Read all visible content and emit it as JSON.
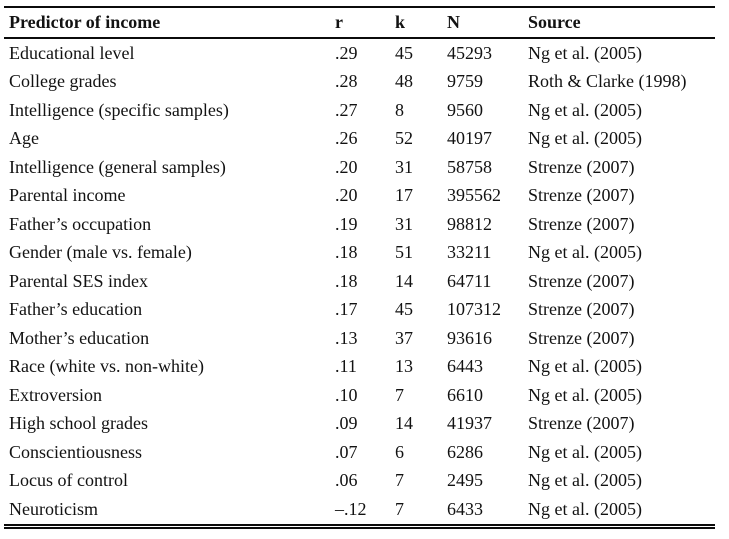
{
  "page": {
    "background": "#ffffff",
    "text_color": "#121212",
    "rule_color": "#0b0b0b"
  },
  "table": {
    "columns": [
      {
        "key": "predictor",
        "label": "Predictor of income"
      },
      {
        "key": "r",
        "label": "r"
      },
      {
        "key": "k",
        "label": "k"
      },
      {
        "key": "n",
        "label": "N"
      },
      {
        "key": "source",
        "label": "Source"
      }
    ],
    "rows": [
      {
        "predictor": "Educational level",
        "r": ".29",
        "k": "45",
        "n": "45293",
        "source": "Ng et al. (2005)"
      },
      {
        "predictor": "College grades",
        "r": ".28",
        "k": "48",
        "n": "9759",
        "source": "Roth & Clarke (1998)"
      },
      {
        "predictor": "Intelligence (specific samples)",
        "r": ".27",
        "k": "8",
        "n": "9560",
        "source": "Ng et al. (2005)"
      },
      {
        "predictor": "Age",
        "r": ".26",
        "k": "52",
        "n": "40197",
        "source": "Ng et al. (2005)"
      },
      {
        "predictor": "Intelligence (general samples)",
        "r": ".20",
        "k": "31",
        "n": "58758",
        "source": "Strenze (2007)"
      },
      {
        "predictor": "Parental income",
        "r": ".20",
        "k": "17",
        "n": "395562",
        "source": "Strenze (2007)"
      },
      {
        "predictor": "Father’s occupation",
        "r": ".19",
        "k": "31",
        "n": "98812",
        "source": "Strenze (2007)"
      },
      {
        "predictor": "Gender (male vs. female)",
        "r": ".18",
        "k": "51",
        "n": "33211",
        "source": "Ng et al. (2005)"
      },
      {
        "predictor": "Parental SES index",
        "r": ".18",
        "k": "14",
        "n": "64711",
        "source": "Strenze (2007)"
      },
      {
        "predictor": "Father’s education",
        "r": ".17",
        "k": "45",
        "n": "107312",
        "source": "Strenze (2007)"
      },
      {
        "predictor": "Mother’s education",
        "r": ".13",
        "k": "37",
        "n": "93616",
        "source": "Strenze (2007)"
      },
      {
        "predictor": "Race (white vs. non-white)",
        "r": ".11",
        "k": "13",
        "n": "6443",
        "source": "Ng et al. (2005)"
      },
      {
        "predictor": "Extroversion",
        "r": ".10",
        "k": "7",
        "n": "6610",
        "source": "Ng et al. (2005)"
      },
      {
        "predictor": "High school grades",
        "r": ".09",
        "k": "14",
        "n": "41937",
        "source": "Strenze (2007)"
      },
      {
        "predictor": "Conscientiousness",
        "r": ".07",
        "k": "6",
        "n": "6286",
        "source": "Ng et al. (2005)"
      },
      {
        "predictor": "Locus of control",
        "r": ".06",
        "k": "7",
        "n": "2495",
        "source": "Ng et al. (2005)"
      },
      {
        "predictor": "Neuroticism",
        "r": "–.12",
        "k": "7",
        "n": "6433",
        "source": "Ng et al. (2005)"
      }
    ]
  }
}
